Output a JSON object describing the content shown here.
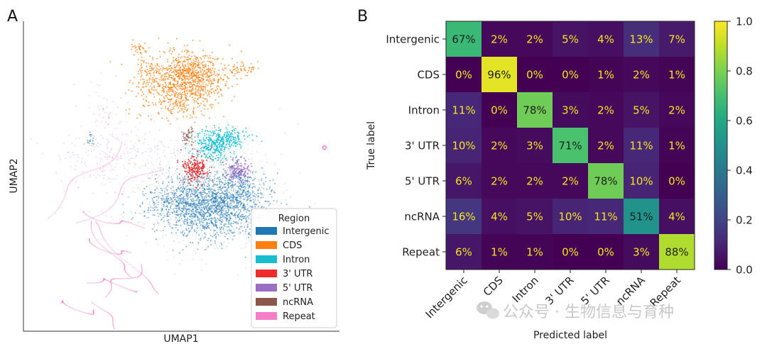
{
  "panels": {
    "a": {
      "letter": "A"
    },
    "b": {
      "letter": "B"
    }
  },
  "colors": {
    "Intergenic": "#1f77b4",
    "CDS": "#ff7f0e",
    "Intron": "#17becf",
    "3' UTR": "#ef2b2b",
    "5' UTR": "#9b6dc4",
    "ncRNA": "#8c564b",
    "Repeat": "#f47fc8",
    "background_points": "#b9c6d6"
  },
  "watermark": {
    "icon": "wechat-icon",
    "text": "公众号 · 生物信息与育种"
  },
  "chart_data": [
    {
      "type": "scatter",
      "title": "",
      "xlabel": "UMAP1",
      "ylabel": "UMAP2",
      "grid": false,
      "legend": {
        "title": "Region",
        "placement": "bottom-right",
        "entries": [
          "Intergenic",
          "CDS",
          "Intron",
          "3' UTR",
          "5' UTR",
          "ncRNA",
          "Repeat"
        ]
      },
      "note": "UMAP embedding scatter; individual points are not labeled. Clusters: CDS top-center, Intron center-right, 3' UTR center, 5' UTR right of center, Intergenic lower-center, Repeat scattered bottom-left and left, ncRNA small cluster near center."
    },
    {
      "type": "heatmap",
      "title": "",
      "xlabel": "Predicted label",
      "ylabel": "True label",
      "rows": [
        "Intergenic",
        "CDS",
        "Intron",
        "3' UTR",
        "5' UTR",
        "ncRNA",
        "Repeat"
      ],
      "cols": [
        "Intergenic",
        "CDS",
        "Intron",
        "3' UTR",
        "5' UTR",
        "ncRNA",
        "Repeat"
      ],
      "values": [
        [
          67,
          2,
          2,
          5,
          4,
          13,
          7
        ],
        [
          0,
          96,
          0,
          0,
          1,
          2,
          1
        ],
        [
          11,
          0,
          78,
          3,
          2,
          5,
          2
        ],
        [
          10,
          2,
          3,
          71,
          2,
          11,
          1
        ],
        [
          6,
          2,
          2,
          2,
          78,
          10,
          0
        ],
        [
          16,
          4,
          5,
          10,
          11,
          51,
          4
        ],
        [
          6,
          1,
          1,
          0,
          0,
          3,
          88
        ]
      ],
      "value_suffix": "%",
      "colormap": "viridis",
      "colorbar": {
        "range": [
          0.0,
          1.0
        ],
        "ticks": [
          0.0,
          0.2,
          0.4,
          0.6,
          0.8,
          1.0
        ],
        "tick_labels": [
          "0.0",
          "0.2",
          "0.4",
          "0.6",
          "0.8",
          "1.0"
        ]
      }
    }
  ]
}
